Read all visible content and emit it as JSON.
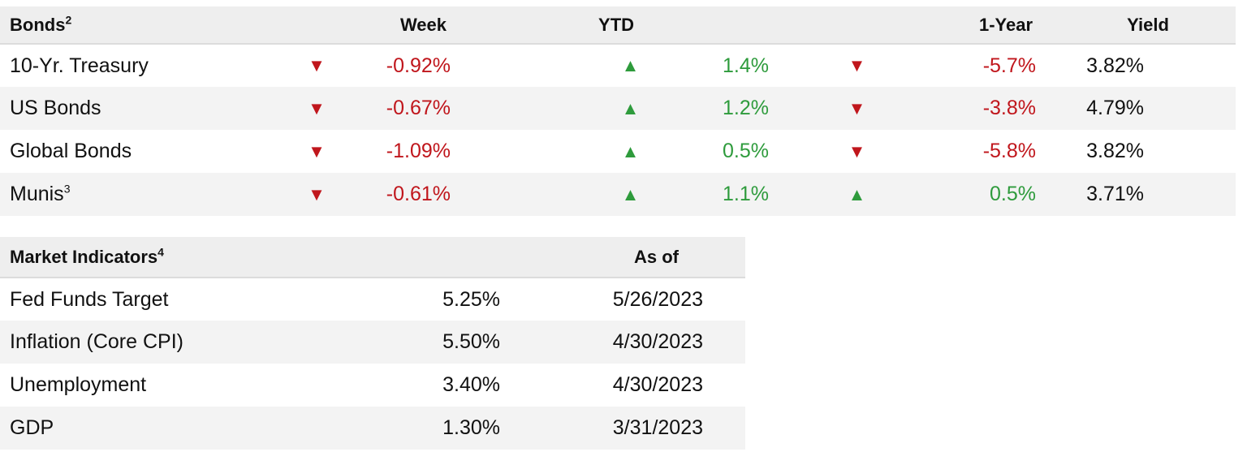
{
  "bonds": {
    "header": {
      "title": "Bonds",
      "title_sup": "2",
      "week": "Week",
      "ytd": "YTD",
      "one_year": "1-Year",
      "yield": "Yield"
    },
    "rows": [
      {
        "name": "10-Yr. Treasury",
        "name_sup": "",
        "week_dir": "down",
        "week_arrow": "▼",
        "week": "-0.92%",
        "ytd_dir": "up",
        "ytd_arrow": "▲",
        "ytd": "1.4%",
        "one_year_dir": "down",
        "one_year_arrow": "▼",
        "one_year": "-5.7%",
        "yield": "3.82%"
      },
      {
        "name": "US Bonds",
        "name_sup": "",
        "week_dir": "down",
        "week_arrow": "▼",
        "week": "-0.67%",
        "ytd_dir": "up",
        "ytd_arrow": "▲",
        "ytd": "1.2%",
        "one_year_dir": "down",
        "one_year_arrow": "▼",
        "one_year": "-3.8%",
        "yield": "4.79%"
      },
      {
        "name": "Global Bonds",
        "name_sup": "",
        "week_dir": "down",
        "week_arrow": "▼",
        "week": "-1.09%",
        "ytd_dir": "up",
        "ytd_arrow": "▲",
        "ytd": "0.5%",
        "one_year_dir": "down",
        "one_year_arrow": "▼",
        "one_year": "-5.8%",
        "yield": "3.82%"
      },
      {
        "name": "Munis",
        "name_sup": "3",
        "week_dir": "down",
        "week_arrow": "▼",
        "week": "-0.61%",
        "ytd_dir": "up",
        "ytd_arrow": "▲",
        "ytd": "1.1%",
        "one_year_dir": "up",
        "one_year_arrow": "▲",
        "one_year": "0.5%",
        "yield": "3.71%"
      }
    ]
  },
  "market": {
    "header": {
      "title": "Market Indicators",
      "title_sup": "4",
      "as_of": "As of"
    },
    "rows": [
      {
        "name": "Fed Funds Target",
        "value": "5.25%",
        "date": "5/26/2023"
      },
      {
        "name": "Inflation (Core CPI)",
        "value": "5.50%",
        "date": "4/30/2023"
      },
      {
        "name": "Unemployment",
        "value": "3.40%",
        "date": "4/30/2023"
      },
      {
        "name": "GDP",
        "value": "1.30%",
        "date": "3/31/2023"
      }
    ]
  },
  "colors": {
    "up": "#2e9b3c",
    "down": "#c0161c",
    "header_bg": "#eeeeee",
    "stripe_bg": "#f3f3f3"
  },
  "icons": {
    "up": "triangle-up-icon",
    "down": "triangle-down-icon"
  }
}
